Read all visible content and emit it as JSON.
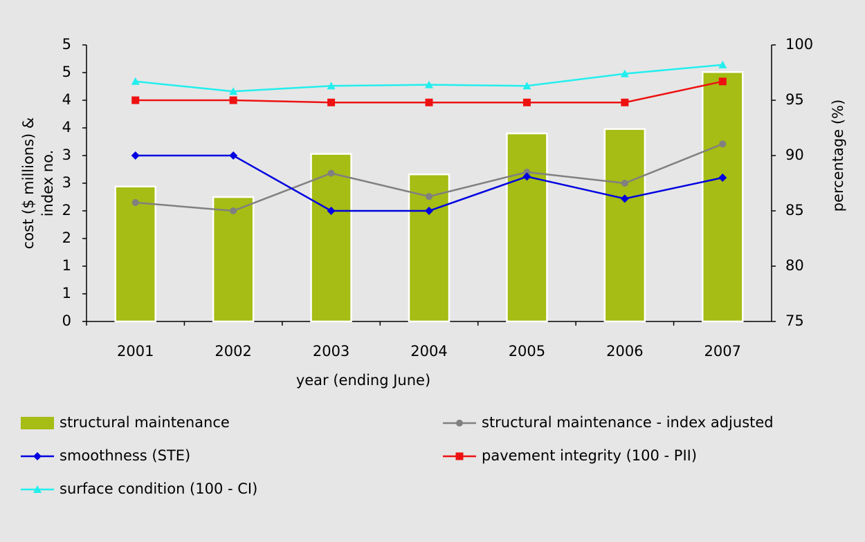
{
  "chart_data": {
    "type": "bar_line",
    "x_label": "year (ending June)",
    "y_label": [
      "cost ($ millions) &",
      "index no."
    ],
    "y2_label": "percentage (%)",
    "categories": [
      "2001",
      "2002",
      "2003",
      "2004",
      "2005",
      "2006",
      "2007"
    ],
    "ylim": [
      0,
      5
    ],
    "yticks": [
      0,
      {
        "value": 0.5,
        "label": "1"
      },
      1,
      {
        "value": 1.5,
        "label": "2"
      },
      2,
      {
        "value": 2.5,
        "label": "3"
      },
      3,
      {
        "value": 3.5,
        "label": "4"
      },
      4,
      {
        "value": 4.5,
        "label": "5"
      },
      5
    ],
    "y2lim": [
      75,
      100
    ],
    "y2ticks": [
      75,
      80,
      85,
      90,
      95,
      100
    ],
    "series": [
      {
        "name": "structural maintenance",
        "kind": "bar",
        "color": "#a5bd14",
        "values": [
          2.44,
          2.25,
          3.03,
          2.66,
          3.4,
          3.48,
          4.51
        ]
      },
      {
        "name": "structural maintenance - index adjusted",
        "kind": "line",
        "marker": "circle",
        "color": "#808080",
        "values": [
          2.15,
          2.0,
          2.68,
          2.26,
          2.7,
          2.5,
          3.21
        ]
      },
      {
        "name": "smoothness (STE)",
        "kind": "line",
        "marker": "diamond",
        "axis": "y2",
        "color": "#0000e0",
        "values": [
          90,
          90,
          85,
          85,
          88.1,
          86.1,
          88
        ]
      },
      {
        "name": "pavement integrity (100 - PII)",
        "kind": "line",
        "marker": "square",
        "axis": "y2",
        "color": "#ee1111",
        "values": [
          95,
          95,
          94.8,
          94.8,
          94.8,
          94.8,
          96.7
        ]
      },
      {
        "name": "surface condition (100 - CI)",
        "kind": "line",
        "marker": "triangle",
        "axis": "y2",
        "color": "#22eeee",
        "values": [
          96.7,
          95.8,
          96.3,
          96.4,
          96.3,
          97.4,
          98.2
        ]
      }
    ]
  }
}
